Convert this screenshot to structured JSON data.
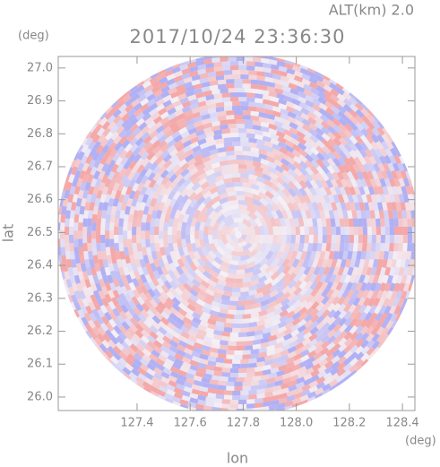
{
  "chart_data": {
    "type": "radar-ppi",
    "title": "2017/10/24 23:36:30",
    "subtitle": "ALT(km) 2.0",
    "x_label": "lon",
    "y_label": "lat",
    "x_unit": "(deg)",
    "y_unit": "(deg)",
    "xlim": [
      127.103,
      128.447
    ],
    "ylim": [
      25.959,
      27.035
    ],
    "xticks": [
      127.4,
      127.6,
      127.8,
      {
        "value": 128,
        "label": "128.0"
      },
      128.2,
      128.4
    ],
    "yticks": [
      {
        "value": 26,
        "label": "26.0"
      },
      26.1,
      26.2,
      26.3,
      26.4,
      26.5,
      26.6,
      26.7,
      26.8,
      26.9,
      {
        "value": 27,
        "label": "27.0"
      }
    ],
    "colors": {
      "positive": "#f4a0a0",
      "negative": "#a8a8f4"
    }
  }
}
